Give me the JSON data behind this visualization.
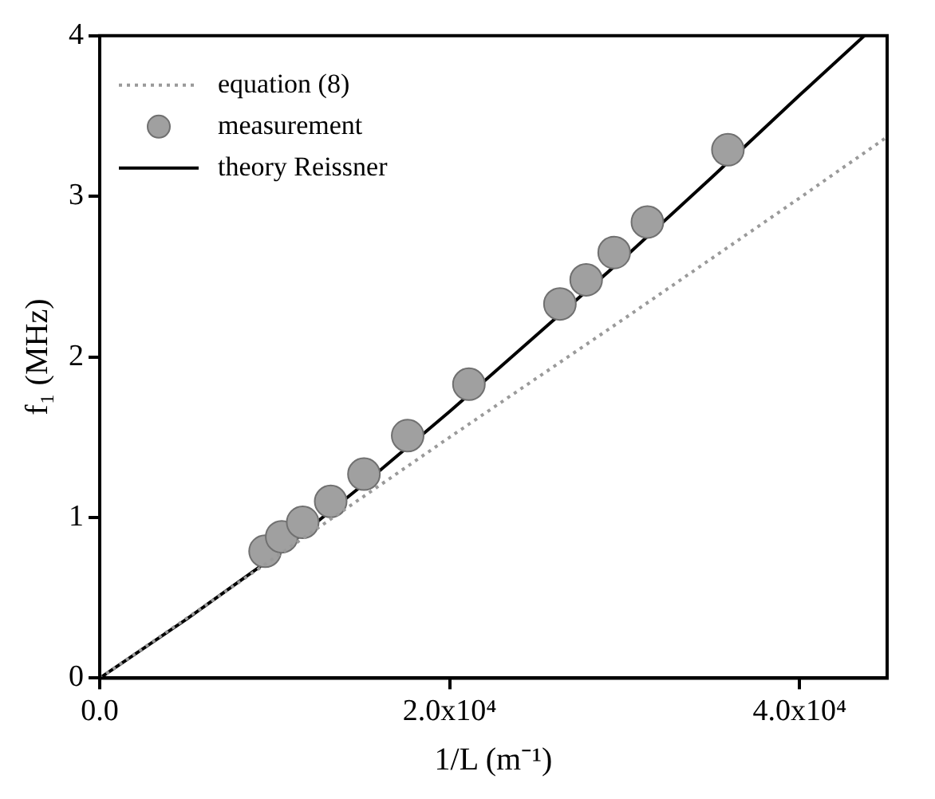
{
  "chart_data": {
    "type": "line",
    "xlabel": "1/L (m⁻¹)",
    "ylabel": "f₁ (MHz)",
    "xlim": [
      0,
      45000
    ],
    "xticks": [
      {
        "value": 0,
        "label": "0.0"
      },
      {
        "value": 20000,
        "label": "2.0x10⁴"
      },
      {
        "value": 40000,
        "label": "4.0x10⁴"
      }
    ],
    "ylim": [
      0,
      4
    ],
    "yticks": [
      0,
      1,
      2,
      3,
      4
    ],
    "grid": false,
    "legend": "top left",
    "series": [
      {
        "name": "equation (8)",
        "type": "line",
        "color": "#9a9a9a",
        "line_style": "dotted",
        "marker": "none",
        "x": [
          0,
          10000,
          20000,
          30000,
          40000,
          45000
        ],
        "values": [
          0,
          0.75,
          1.5,
          2.24,
          2.99,
          3.37
        ]
      },
      {
        "name": "measurement",
        "type": "scatter",
        "color": "#a0a0a0",
        "marker": "circle",
        "x": [
          9450,
          10400,
          11600,
          13200,
          15100,
          17600,
          21100,
          26300,
          27800,
          29400,
          31300,
          35900
        ],
        "values": [
          0.79,
          0.88,
          0.97,
          1.1,
          1.27,
          1.51,
          1.83,
          2.33,
          2.48,
          2.65,
          2.84,
          3.29
        ]
      },
      {
        "name": "theory Reissner",
        "type": "line",
        "color": "#000000",
        "line_style": "solid",
        "marker": "none",
        "x": [
          0,
          5000,
          10000,
          15000,
          20000,
          25000,
          30000,
          35000,
          40000,
          43700
        ],
        "values": [
          0,
          0.37,
          0.76,
          1.2,
          1.66,
          2.14,
          2.62,
          3.12,
          3.63,
          4.0
        ]
      }
    ]
  }
}
